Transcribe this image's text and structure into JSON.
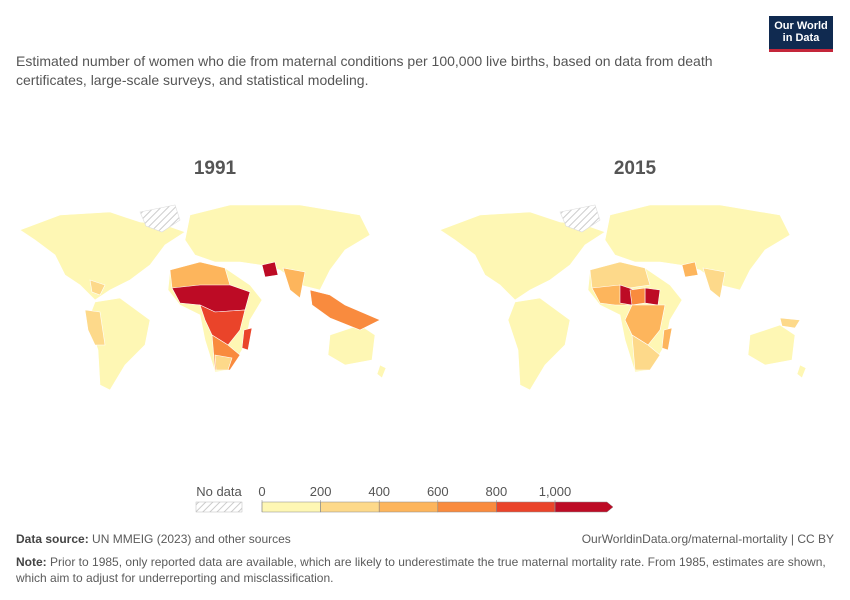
{
  "header": {
    "subtitle": "Estimated number of women who die from maternal conditions per 100,000 live births, based on data from death certificates, large-scale surveys, and statistical modeling.",
    "logo": [
      "Our World",
      "in Data"
    ]
  },
  "maps": [
    {
      "title": "1991"
    },
    {
      "title": "2015"
    }
  ],
  "legend": {
    "no_data": "No data",
    "bins": [
      0,
      200,
      400,
      600,
      800,
      {
        "value": 1000,
        "label": "1,000"
      }
    ],
    "colors": [
      "#fef7b4",
      "#fdd98a",
      "#fdb55c",
      "#f98b3e",
      "#ea442a",
      "#bd0b25"
    ]
  },
  "footer": {
    "source_label": "Data source:",
    "source": "UN MMEIG (2023) and other sources",
    "url": "OurWorldinData.org/maternal-mortality | CC BY",
    "note_label": "Note:",
    "note": "Prior to 1985, only reported data are available, which are likely to underestimate the true maternal mortality rate. From 1985, estimates are shown, which aim to adjust for underreporting and misclassification."
  }
}
